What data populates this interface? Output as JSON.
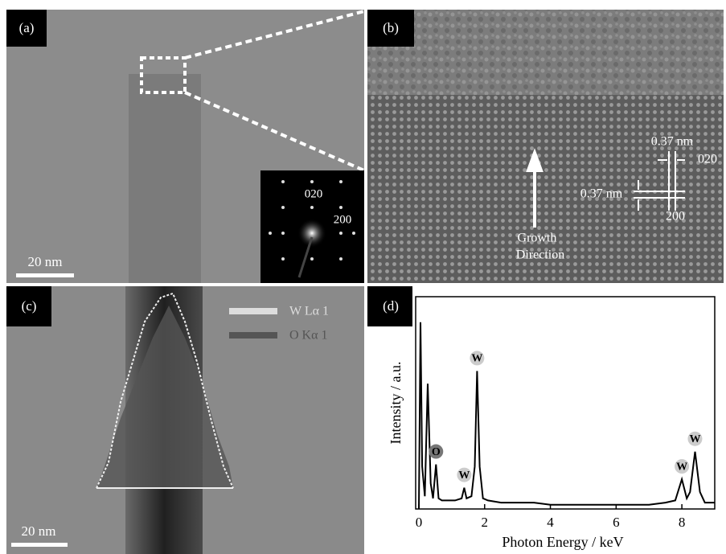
{
  "panels": {
    "a": {
      "label": "(a)",
      "scale_bar": "20 nm",
      "inset_labels": [
        "020",
        "200"
      ]
    },
    "b": {
      "label": "(b)",
      "spacing_top": "0.37 nm",
      "plane_top": "020",
      "spacing_left": "0.37 nm",
      "plane_bottom": "200",
      "arrow_label": [
        "Growth",
        "Direction"
      ]
    },
    "c": {
      "label": "(c)",
      "legend": [
        "W Lα 1",
        "O Kα 1"
      ],
      "scale_bar": "20 nm"
    },
    "d": {
      "label": "(d)"
    }
  },
  "chart_data": {
    "type": "line",
    "xlabel": "Photon Energy / keV",
    "ylabel": "Intensity / a.u.",
    "x": [
      0,
      0.05,
      0.1,
      0.18,
      0.27,
      0.36,
      0.43,
      0.52,
      0.6,
      0.7,
      0.9,
      1.1,
      1.3,
      1.38,
      1.45,
      1.6,
      1.7,
      1.77,
      1.85,
      1.95,
      2.1,
      2.5,
      3,
      3.5,
      4,
      4.5,
      5,
      5.5,
      6,
      6.5,
      7,
      7.5,
      7.8,
      8.0,
      8.15,
      8.25,
      8.4,
      8.55,
      8.7,
      9
    ],
    "values": [
      0,
      88,
      20,
      6,
      59,
      12,
      5,
      21,
      5,
      4,
      4,
      4,
      5,
      10,
      5,
      6,
      20,
      65,
      20,
      5,
      4,
      3,
      3,
      3,
      2,
      2,
      2,
      2,
      2,
      2,
      2,
      3,
      4,
      14,
      5,
      8,
      27,
      8,
      3,
      3
    ],
    "color": "#000000",
    "xlim": [
      0,
      9
    ],
    "xticks": [
      0,
      2,
      4,
      6,
      8
    ],
    "ylim": [
      0,
      100
    ],
    "annotations": [
      {
        "text": "O",
        "x": 0.52,
        "y": 21
      },
      {
        "text": "W",
        "x": 1.38,
        "y": 10
      },
      {
        "text": "W",
        "x": 1.77,
        "y": 65
      },
      {
        "text": "W",
        "x": 8.0,
        "y": 14
      },
      {
        "text": "W",
        "x": 8.4,
        "y": 27
      }
    ]
  }
}
